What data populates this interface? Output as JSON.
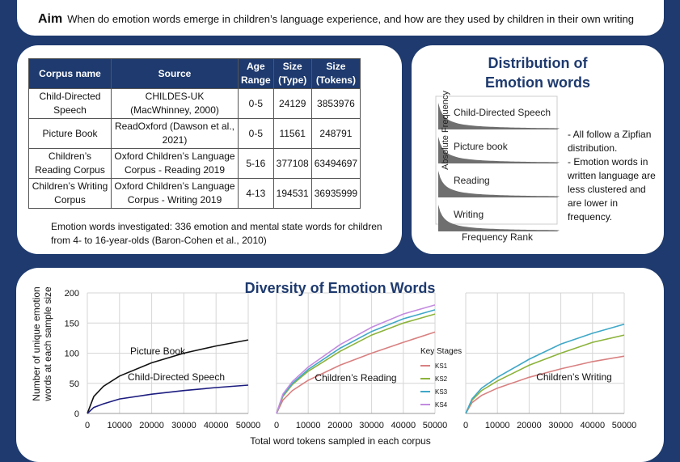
{
  "aim": {
    "label": "Aim",
    "text": "When do emotion words emerge in children’s language experience, and how are they used by children in their own writing"
  },
  "corpus_table": {
    "headers": [
      "Corpus name",
      "Source",
      "Age Range",
      "Size (Type)",
      "Size (Tokens)"
    ],
    "rows": [
      {
        "name": "Child-Directed Speech",
        "source": "CHILDES-UK (MacWhinney, 2000)",
        "age": "0-5",
        "types": "24129",
        "tokens": "3853976"
      },
      {
        "name": "Picture Book",
        "source": "ReadOxford (Dawson et al., 2021)",
        "age": "0-5",
        "types": "11561",
        "tokens": "248791"
      },
      {
        "name": "Children’s Reading Corpus",
        "source": "Oxford Children’s Language Corpus - Reading 2019",
        "age": "5-16",
        "types": "377108",
        "tokens": "63494697"
      },
      {
        "name": "Children’s Writing Corpus",
        "source": "Oxford Children’s Language Corpus - Writing 2019",
        "age": "4-13",
        "types": "194531",
        "tokens": "36935999"
      }
    ],
    "note": "Emotion words investigated: 336 emotion and mental state words for children from 4- to 16-year-olds (Baron-Cohen et al., 2010)"
  },
  "distribution": {
    "title_line1": "Distribution of",
    "title_line2": "Emotion words",
    "ylabel": "Absolute Frequency",
    "xlabel": "Frequency Rank",
    "panels": [
      "Child-Directed Speech",
      "Picture book",
      "Reading",
      "Writing"
    ],
    "notes": [
      "- All follow a Zipfian distribution.",
      "- Emotion words in written language are less clustered and are lower in frequency."
    ]
  },
  "diversity": {
    "title": "Diversity of Emotion Words",
    "ylabel_line1": "Number of unique emotion",
    "ylabel_line2": "words at each sample size",
    "xlabel": "Total word tokens sampled in each corpus",
    "legend_title": "Key Stages",
    "colors": {
      "KS1": "#d98080",
      "KS2": "#8cb33a",
      "KS3": "#3fa8c8",
      "KS4": "#c38be0",
      "picture_book": "#111111",
      "cds": "#1c1c80"
    }
  },
  "chart_data": [
    {
      "type": "line",
      "title": "",
      "xlabel": "Total word tokens sampled in each corpus",
      "ylabel": "Number of unique emotion words at each sample size",
      "x_ticks": [
        "0",
        "10000",
        "20000",
        "30000",
        "40000",
        "50000"
      ],
      "y_ticks": [
        "0",
        "50",
        "100",
        "150",
        "200"
      ],
      "xlim": [
        0,
        50000
      ],
      "ylim": [
        0,
        200
      ],
      "annotations": [
        "Picture Book",
        "Child-Directed Speech"
      ],
      "x": [
        0,
        2000,
        5000,
        10000,
        20000,
        30000,
        40000,
        50000
      ],
      "series": [
        {
          "name": "Picture Book",
          "values": [
            0,
            28,
            45,
            62,
            84,
            100,
            112,
            122
          ]
        },
        {
          "name": "Child-Directed Speech",
          "values": [
            0,
            10,
            16,
            24,
            32,
            38,
            43,
            47
          ]
        }
      ]
    },
    {
      "type": "line",
      "title": "",
      "annotations": [
        "Children’s Reading"
      ],
      "x_ticks": [
        "0",
        "10000",
        "20000",
        "30000",
        "40000",
        "50000"
      ],
      "xlim": [
        0,
        50000
      ],
      "ylim": [
        0,
        200
      ],
      "legend_title": "Key Stages",
      "legend_position": "right",
      "x": [
        0,
        2000,
        5000,
        10000,
        20000,
        30000,
        40000,
        50000
      ],
      "series": [
        {
          "name": "KS1",
          "values": [
            0,
            22,
            38,
            55,
            80,
            100,
            118,
            135
          ]
        },
        {
          "name": "KS2",
          "values": [
            0,
            28,
            48,
            70,
            103,
            130,
            150,
            165
          ]
        },
        {
          "name": "KS3",
          "values": [
            0,
            30,
            50,
            73,
            108,
            136,
            157,
            172
          ]
        },
        {
          "name": "KS4",
          "values": [
            0,
            32,
            53,
            77,
            114,
            143,
            165,
            180
          ]
        }
      ]
    },
    {
      "type": "line",
      "title": "",
      "annotations": [
        "Children’s Writing"
      ],
      "x_ticks": [
        "0",
        "10000",
        "20000",
        "30000",
        "40000",
        "50000"
      ],
      "xlim": [
        0,
        50000
      ],
      "ylim": [
        0,
        200
      ],
      "x": [
        0,
        2000,
        5000,
        10000,
        20000,
        30000,
        40000,
        50000
      ],
      "series": [
        {
          "name": "KS1",
          "values": [
            0,
            18,
            30,
            42,
            60,
            74,
            86,
            95
          ]
        },
        {
          "name": "KS2",
          "values": [
            0,
            22,
            38,
            54,
            80,
            100,
            118,
            130
          ]
        },
        {
          "name": "KS3",
          "values": [
            0,
            24,
            42,
            60,
            90,
            115,
            133,
            148
          ]
        }
      ]
    }
  ]
}
